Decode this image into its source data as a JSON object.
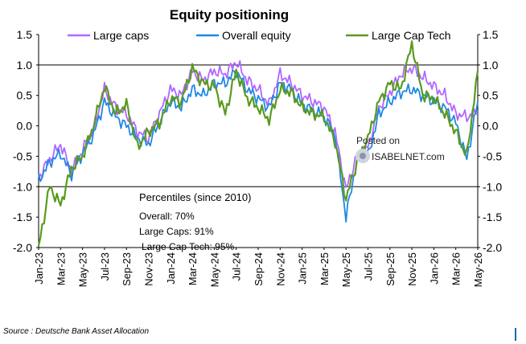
{
  "chart_data": {
    "type": "line",
    "title": "Equity positioning",
    "ylim": [
      -2.0,
      1.5
    ],
    "yticks": [
      "1.5",
      "1.0",
      "0.5",
      "0.0",
      "-0.5",
      "-1.0",
      "-1.5",
      "-2.0"
    ],
    "ytick_values": [
      1.5,
      1.0,
      0.5,
      0.0,
      -0.5,
      -1.0,
      -1.5,
      -2.0
    ],
    "reference_lines": [
      1.0,
      -1.0
    ],
    "x_tick_labels": [
      "Jan-23",
      "Mar-23",
      "May-23",
      "Jul-23",
      "Sep-23",
      "Nov-23",
      "Jan-24",
      "Mar-24",
      "May-24",
      "Jul-24",
      "Sep-24",
      "Nov-24",
      "Jan-25",
      "Mar-25",
      "May-25",
      "Jul-25",
      "Sep-25",
      "Nov-25",
      "Jan-26",
      "Mar-26",
      "May-26"
    ],
    "x": [
      "Jan-23",
      "Feb-23",
      "Mar-23",
      "Apr-23",
      "May-23",
      "Jun-23",
      "Jul-23",
      "Aug-23",
      "Sep-23",
      "Oct-23",
      "Nov-23",
      "Dec-23",
      "Jan-24",
      "Feb-24",
      "Mar-24",
      "Apr-24",
      "May-24",
      "Jun-24",
      "Jul-24",
      "Aug-24",
      "Sep-24",
      "Oct-24",
      "Nov-24",
      "Dec-24",
      "Jan-25",
      "Feb-25",
      "Mar-25",
      "Apr-25",
      "May-25",
      "Jun-25",
      "Jul-25",
      "Aug-25",
      "Sep-25",
      "Oct-25",
      "Nov-25",
      "Dec-25",
      "Jan-26",
      "Feb-26",
      "Mar-26",
      "Apr-26",
      "May-26"
    ],
    "legend_position": "top",
    "series": [
      {
        "name": "Large caps",
        "color": "#b266ff",
        "values": [
          -0.85,
          -0.55,
          -0.3,
          -0.75,
          -0.4,
          -0.05,
          0.6,
          0.3,
          0.2,
          -0.1,
          -0.2,
          0.2,
          0.6,
          0.5,
          0.9,
          0.75,
          0.9,
          0.85,
          1.05,
          0.75,
          0.6,
          0.35,
          0.85,
          0.7,
          0.5,
          0.4,
          0.3,
          -0.1,
          -1.05,
          -0.5,
          -0.35,
          0.3,
          0.55,
          0.85,
          0.95,
          0.8,
          0.65,
          0.5,
          0.2,
          0.15,
          0.2
        ]
      },
      {
        "name": "Overall equity",
        "color": "#1e88e5",
        "values": [
          -0.9,
          -0.6,
          -0.45,
          -0.8,
          -0.45,
          -0.15,
          0.4,
          0.15,
          0.0,
          -0.2,
          -0.3,
          0.05,
          0.4,
          0.3,
          0.6,
          0.5,
          0.7,
          0.7,
          0.9,
          0.6,
          0.45,
          0.3,
          0.7,
          0.6,
          0.35,
          0.25,
          0.15,
          -0.15,
          -1.5,
          -0.55,
          -0.5,
          0.2,
          0.4,
          0.55,
          0.6,
          0.5,
          0.4,
          0.3,
          0.05,
          -0.55,
          0.4
        ]
      },
      {
        "name": "Large Cap Tech",
        "color": "#5a9a1f",
        "values": [
          -2.0,
          -1.0,
          -1.3,
          -0.7,
          -0.5,
          0.0,
          0.65,
          0.2,
          0.35,
          -0.35,
          -0.1,
          0.05,
          0.45,
          0.4,
          0.95,
          0.7,
          0.65,
          0.2,
          0.9,
          0.45,
          0.3,
          0.1,
          0.6,
          0.55,
          0.3,
          0.2,
          0.15,
          -0.25,
          -1.2,
          -0.6,
          -0.2,
          0.4,
          0.7,
          0.6,
          1.35,
          0.5,
          0.45,
          0.2,
          -0.1,
          -0.5,
          0.9
        ]
      }
    ],
    "annotations": {
      "percentiles_title": "Percentiles (since 2010)",
      "percentiles": [
        "Overall: 70%",
        "Large Caps: 91%",
        "Large Cap Tech: 95%"
      ],
      "watermark_line1": "Posted on",
      "watermark_line2": "ISABELNET.com"
    }
  },
  "source": "Source : Deutsche Bank Asset Allocation",
  "colors": {
    "axis": "#000000",
    "reference_line": "#000000"
  }
}
